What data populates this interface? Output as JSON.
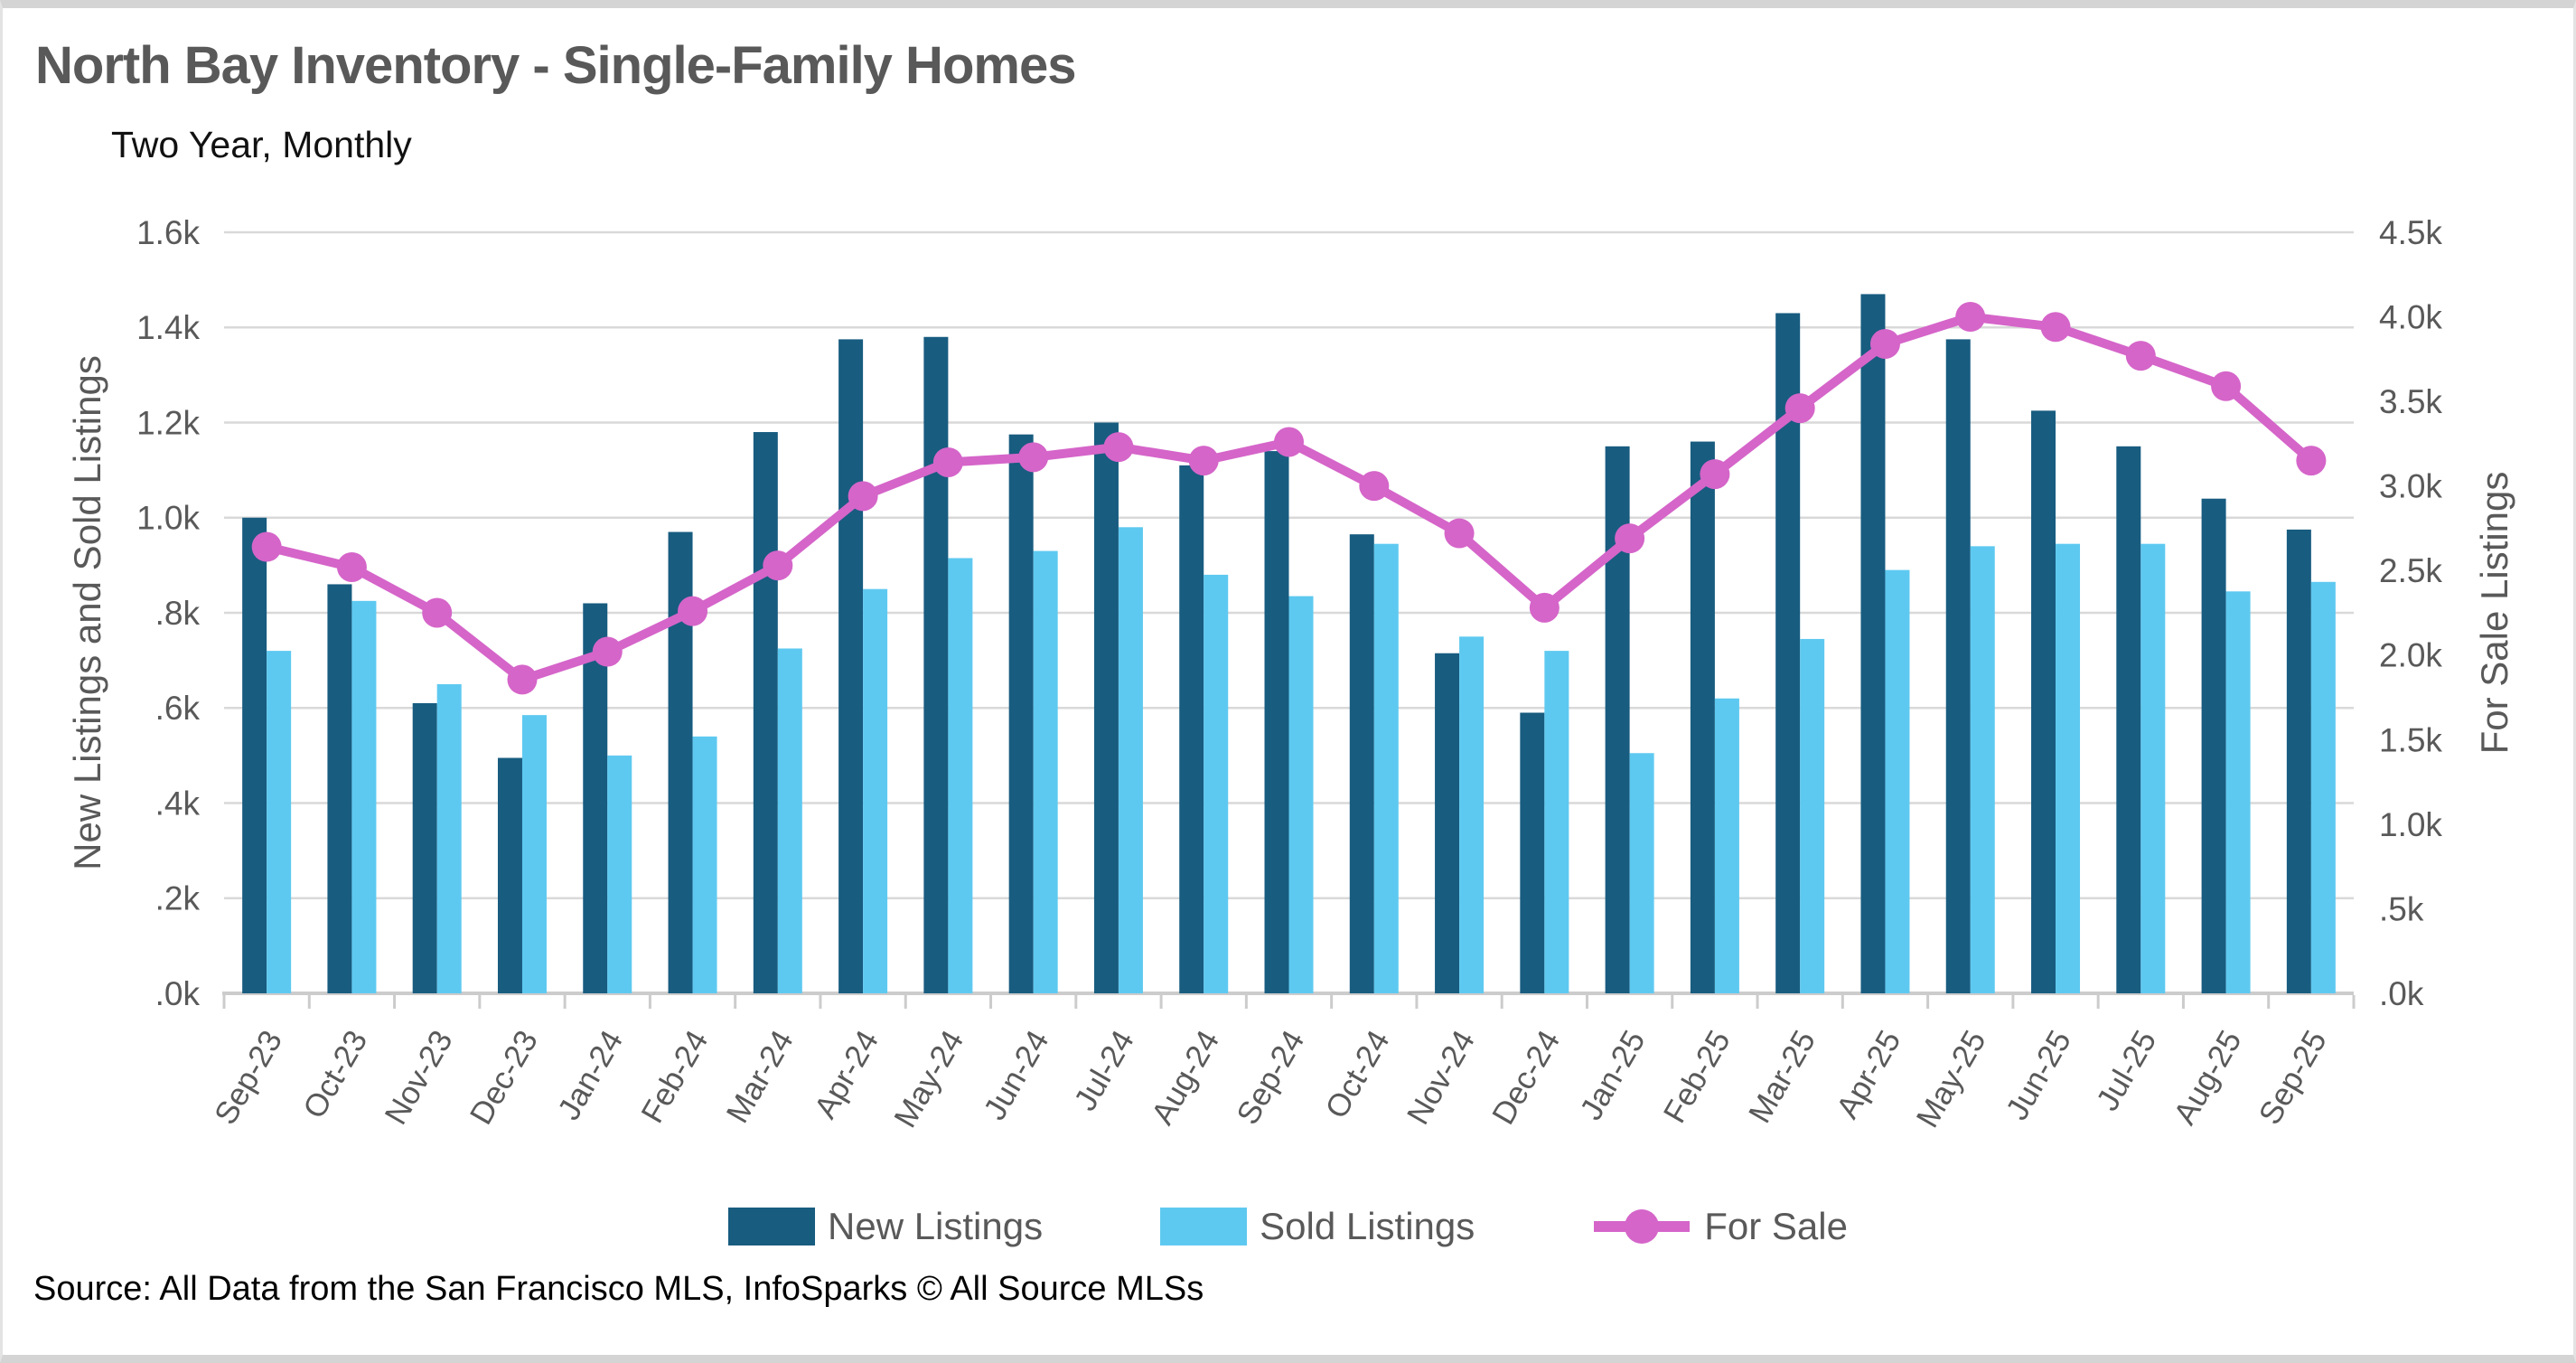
{
  "chart_data": {
    "type": "bar",
    "title": "North Bay Inventory - Single-Family Homes",
    "subtitle": "Two Year, Monthly",
    "categories": [
      "Sep-23",
      "Oct-23",
      "Nov-23",
      "Dec-23",
      "Jan-24",
      "Feb-24",
      "Mar-24",
      "Apr-24",
      "May-24",
      "Jun-24",
      "Jul-24",
      "Aug-24",
      "Sep-24",
      "Oct-24",
      "Nov-24",
      "Dec-24",
      "Jan-25",
      "Feb-25",
      "Mar-25",
      "Apr-25",
      "May-25",
      "Jun-25",
      "Jul-25",
      "Aug-25",
      "Sep-25"
    ],
    "series": [
      {
        "name": "New Listings",
        "type": "bar",
        "axis": "left",
        "color": "#185C80",
        "values": [
          1000,
          860,
          610,
          495,
          820,
          970,
          1180,
          1375,
          1380,
          1175,
          1200,
          1110,
          1140,
          965,
          715,
          590,
          1150,
          1160,
          1430,
          1470,
          1375,
          1225,
          1150,
          1040,
          975
        ]
      },
      {
        "name": "Sold Listings",
        "type": "bar",
        "axis": "left",
        "color": "#5EC9F0",
        "values": [
          720,
          825,
          650,
          585,
          500,
          540,
          725,
          850,
          915,
          930,
          980,
          880,
          835,
          945,
          750,
          720,
          505,
          620,
          745,
          890,
          940,
          945,
          945,
          845,
          865
        ]
      },
      {
        "name": "For Sale",
        "type": "line",
        "axis": "right",
        "color": "#D565C9",
        "values": [
          2640,
          2520,
          2250,
          1855,
          2020,
          2260,
          2530,
          2940,
          3140,
          3170,
          3230,
          3150,
          3260,
          3000,
          2720,
          2280,
          2690,
          3070,
          3460,
          3840,
          4000,
          3940,
          3770,
          3590,
          3150
        ]
      }
    ],
    "left_axis": {
      "label": "New Listings and Sold Listings",
      "min": 0,
      "max": 1600,
      "tick_labels": [
        "1.6k",
        "1.4k",
        "1.2k",
        "1.0k",
        ".8k",
        ".6k",
        ".4k",
        ".2k",
        ".0k"
      ]
    },
    "right_axis": {
      "label": "For Sale Listings",
      "min": 0,
      "max": 4500,
      "tick_labels": [
        "4.5k",
        "4.0k",
        "3.5k",
        "3.0k",
        "2.5k",
        "2.0k",
        "1.5k",
        "1.0k",
        ".5k",
        ".0k"
      ]
    },
    "grid": true,
    "legend_position": "bottom"
  },
  "source_note": "Source: All Data from the San Francisco MLS, InfoSparks © All Source MLSs",
  "colors": {
    "title_text": "#595959",
    "axis_text": "#595959",
    "gridline": "#d9d9d9",
    "axis_line": "#cccccc",
    "background": "#ffffff"
  }
}
